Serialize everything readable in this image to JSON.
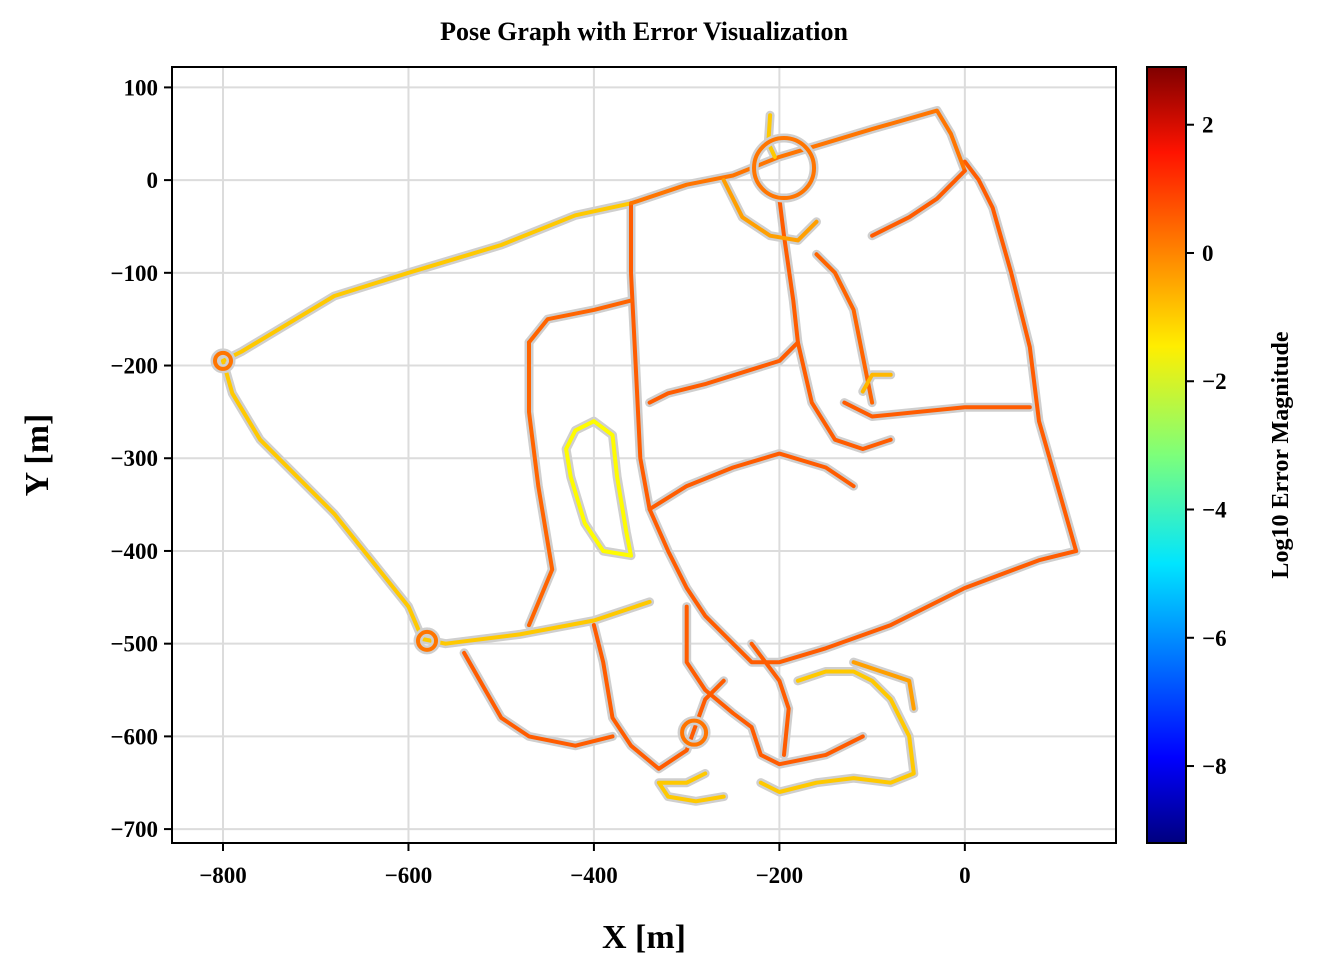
{
  "chart_data": {
    "type": "line",
    "title": "Pose Graph with Error Visualization",
    "xlabel": "X [m]",
    "ylabel": "Y [m]",
    "xlim": [
      -855,
      163
    ],
    "ylim": [
      -715,
      122
    ],
    "xticks": [
      -800,
      -600,
      -400,
      -200,
      0
    ],
    "yticks": [
      100,
      0,
      -100,
      -200,
      -300,
      -400,
      -500,
      -600,
      -700
    ],
    "grid": true,
    "colorbar": {
      "label": "Log10 Error Magnitude",
      "colormap": "jet",
      "range": [
        -9.2,
        2.9
      ],
      "ticks": [
        2,
        0,
        -2,
        -4,
        -6,
        -8
      ]
    },
    "series": [
      {
        "color_value": -1.0,
        "points": [
          [
            -800,
            -195
          ],
          [
            -780,
            -185
          ],
          [
            -730,
            -155
          ],
          [
            -680,
            -125
          ],
          [
            -600,
            -100
          ],
          [
            -500,
            -70
          ],
          [
            -420,
            -38
          ],
          [
            -360,
            -25
          ]
        ]
      },
      {
        "color_value": -1.0,
        "points": [
          [
            -800,
            -195
          ],
          [
            -790,
            -230
          ],
          [
            -760,
            -280
          ],
          [
            -720,
            -320
          ],
          [
            -680,
            -360
          ],
          [
            -640,
            -410
          ],
          [
            -600,
            -460
          ],
          [
            -585,
            -495
          ],
          [
            -560,
            -500
          ],
          [
            -480,
            -490
          ],
          [
            -400,
            -475
          ],
          [
            -340,
            -455
          ]
        ]
      },
      {
        "color_value": 0.3,
        "points": [
          [
            -360,
            -25
          ],
          [
            -360,
            -100
          ],
          [
            -355,
            -200
          ],
          [
            -350,
            -300
          ],
          [
            -340,
            -355
          ],
          [
            -320,
            -400
          ],
          [
            -300,
            -440
          ],
          [
            -280,
            -470
          ],
          [
            -250,
            -500
          ],
          [
            -230,
            -520
          ],
          [
            -200,
            -520
          ],
          [
            -150,
            -505
          ],
          [
            -80,
            -480
          ],
          [
            0,
            -440
          ],
          [
            80,
            -410
          ],
          [
            120,
            -400
          ]
        ]
      },
      {
        "color_value": 0.3,
        "points": [
          [
            120,
            -400
          ],
          [
            100,
            -330
          ],
          [
            80,
            -260
          ],
          [
            70,
            -180
          ],
          [
            50,
            -100
          ],
          [
            30,
            -30
          ],
          [
            15,
            0
          ],
          [
            0,
            20
          ]
        ]
      },
      {
        "color_value": 0.0,
        "points": [
          [
            -360,
            -25
          ],
          [
            -300,
            -5
          ],
          [
            -250,
            5
          ],
          [
            -200,
            25
          ],
          [
            -100,
            55
          ],
          [
            -30,
            75
          ],
          [
            -15,
            50
          ],
          [
            0,
            10
          ]
        ]
      },
      {
        "color_value": 0.2,
        "points": [
          [
            -470,
            -175
          ],
          [
            -450,
            -150
          ],
          [
            -400,
            -140
          ],
          [
            -360,
            -130
          ]
        ]
      },
      {
        "color_value": 0.2,
        "points": [
          [
            -470,
            -175
          ],
          [
            -470,
            -250
          ],
          [
            -460,
            -330
          ],
          [
            -445,
            -420
          ],
          [
            -470,
            -480
          ]
        ]
      },
      {
        "color_value": 0.3,
        "points": [
          [
            -340,
            -240
          ],
          [
            -320,
            -230
          ],
          [
            -280,
            -220
          ],
          [
            -200,
            -195
          ],
          [
            -180,
            -175
          ]
        ]
      },
      {
        "color_value": 0.3,
        "points": [
          [
            -340,
            -355
          ],
          [
            -300,
            -330
          ],
          [
            -250,
            -310
          ],
          [
            -200,
            -295
          ],
          [
            -150,
            -310
          ],
          [
            -120,
            -330
          ]
        ]
      },
      {
        "color_value": 0.3,
        "points": [
          [
            -200,
            -20
          ],
          [
            -195,
            -60
          ],
          [
            -185,
            -130
          ],
          [
            -180,
            -175
          ],
          [
            -165,
            -240
          ],
          [
            -140,
            -280
          ],
          [
            -110,
            -290
          ],
          [
            -80,
            -280
          ]
        ]
      },
      {
        "color_value": 0.3,
        "points": [
          [
            -130,
            -240
          ],
          [
            -100,
            -255
          ],
          [
            -50,
            -250
          ],
          [
            0,
            -245
          ],
          [
            70,
            -245
          ]
        ]
      },
      {
        "color_value": 0.2,
        "points": [
          [
            -160,
            -80
          ],
          [
            -140,
            -100
          ],
          [
            -120,
            -140
          ],
          [
            -110,
            -190
          ],
          [
            -100,
            -240
          ]
        ]
      },
      {
        "color_value": 0.3,
        "points": [
          [
            -100,
            -60
          ],
          [
            -60,
            -40
          ],
          [
            -30,
            -20
          ],
          [
            0,
            10
          ]
        ]
      },
      {
        "color_value": -0.5,
        "points": [
          [
            -260,
            0
          ],
          [
            -240,
            -40
          ],
          [
            -210,
            -60
          ],
          [
            -180,
            -65
          ],
          [
            -160,
            -45
          ]
        ]
      },
      {
        "color_value": -1.6,
        "points": [
          [
            -420,
            -270
          ],
          [
            -400,
            -260
          ],
          [
            -380,
            -275
          ],
          [
            -375,
            -320
          ],
          [
            -365,
            -380
          ],
          [
            -360,
            -405
          ],
          [
            -390,
            -400
          ],
          [
            -410,
            -370
          ],
          [
            -425,
            -320
          ],
          [
            -430,
            -290
          ],
          [
            -420,
            -270
          ]
        ]
      },
      {
        "color_value": -1.0,
        "points": [
          [
            -210,
            70
          ],
          [
            -212,
            40
          ],
          [
            -205,
            25
          ]
        ]
      },
      {
        "color_value": -0.8,
        "points": [
          [
            -110,
            -228
          ],
          [
            -100,
            -210
          ],
          [
            -80,
            -210
          ]
        ]
      },
      {
        "color_value": 0.3,
        "points": [
          [
            -400,
            -480
          ],
          [
            -390,
            -520
          ],
          [
            -380,
            -580
          ],
          [
            -360,
            -610
          ],
          [
            -330,
            -635
          ],
          [
            -300,
            -615
          ],
          [
            -280,
            -560
          ],
          [
            -260,
            -540
          ]
        ]
      },
      {
        "color_value": 0.3,
        "points": [
          [
            -300,
            -460
          ],
          [
            -300,
            -520
          ],
          [
            -280,
            -550
          ],
          [
            -250,
            -575
          ],
          [
            -230,
            -590
          ],
          [
            -220,
            -620
          ],
          [
            -200,
            -630
          ],
          [
            -150,
            -620
          ],
          [
            -110,
            -600
          ]
        ]
      },
      {
        "color_value": 0.3,
        "points": [
          [
            -540,
            -510
          ],
          [
            -520,
            -545
          ],
          [
            -500,
            -580
          ],
          [
            -470,
            -600
          ],
          [
            -420,
            -610
          ],
          [
            -380,
            -600
          ]
        ]
      },
      {
        "color_value": 0.3,
        "points": [
          [
            -230,
            -500
          ],
          [
            -200,
            -540
          ],
          [
            -190,
            -570
          ],
          [
            -195,
            -620
          ]
        ]
      },
      {
        "color_value": -1.0,
        "points": [
          [
            -180,
            -540
          ],
          [
            -150,
            -530
          ],
          [
            -120,
            -530
          ],
          [
            -100,
            -540
          ],
          [
            -80,
            -560
          ],
          [
            -60,
            -600
          ],
          [
            -55,
            -640
          ],
          [
            -80,
            -650
          ],
          [
            -120,
            -645
          ],
          [
            -160,
            -650
          ],
          [
            -200,
            -660
          ],
          [
            -220,
            -650
          ]
        ]
      },
      {
        "color_value": -1.0,
        "points": [
          [
            -280,
            -640
          ],
          [
            -300,
            -650
          ],
          [
            -330,
            -650
          ],
          [
            -320,
            -665
          ],
          [
            -290,
            -670
          ],
          [
            -260,
            -665
          ]
        ]
      },
      {
        "color_value": -0.5,
        "points": [
          [
            -120,
            -520
          ],
          [
            -90,
            -530
          ],
          [
            -60,
            -540
          ],
          [
            -55,
            -570
          ]
        ]
      }
    ]
  }
}
